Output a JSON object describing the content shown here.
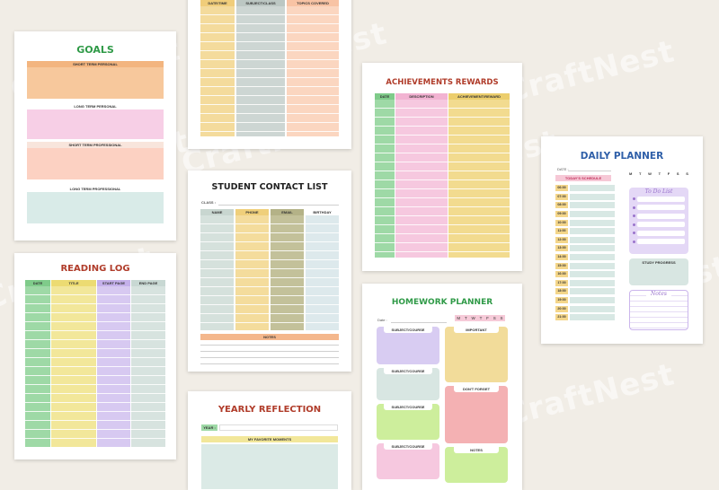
{
  "watermark": "CraftNest",
  "goals": {
    "title": "GOALS",
    "sections": [
      "SHORT TERM PERSONAL",
      "LONG TERM PERSONAL",
      "SHORT TERM PROFESSIONAL",
      "LONG TERM PROFESSIONAL"
    ]
  },
  "reading_log": {
    "title": "READING LOG",
    "headers": [
      "DATE",
      "TITLE",
      "START PAGE",
      "END PAGE"
    ]
  },
  "study_log": {
    "headers": [
      "DATE/TIME",
      "SUBJECT/CLASS",
      "TOPICS COVERED"
    ]
  },
  "contact_list": {
    "title": "STUDENT CONTACT LIST",
    "class_label": "CLASS :",
    "headers": [
      "NAME",
      "PHONE",
      "EMAIL",
      "BIRTHDAY"
    ],
    "notes_label": "NOTES"
  },
  "yearly": {
    "title": "YEARLY REFLECTION",
    "year_label": "YEAR :",
    "moments_label": "MY FAVORITE MOMENTS"
  },
  "achievements": {
    "title": "ACHIEVEMENTS REWARDS",
    "headers": [
      "DATE",
      "DESCRIPTION",
      "ACHIEVEMENT/REWARD"
    ]
  },
  "homework": {
    "title": "HOMEWORK PLANNER",
    "date_label": "Date :",
    "days": [
      "M",
      "T",
      "W",
      "T",
      "F",
      "S",
      "S"
    ],
    "subject_label": "SUBJECT/COURSE",
    "important_label": "IMPORTANT",
    "dont_forget_label": "DON'T FORGET",
    "notes_label": "NOTES"
  },
  "daily": {
    "title": "DAILY PLANNER",
    "date_label": "DATE :",
    "days": [
      "M",
      "T",
      "W",
      "T",
      "F",
      "S",
      "S"
    ],
    "schedule_label": "TODAY'S SCHEDULE",
    "todo_label": "To Do List",
    "progress_label": "STUDY PROGRESS",
    "notes_label": "Notes",
    "times": [
      "06:00",
      "07:00",
      "08:00",
      "09:00",
      "10:00",
      "11:00",
      "12:00",
      "13:00",
      "14:00",
      "15:00",
      "16:00",
      "17:00",
      "18:00",
      "19:00",
      "20:00",
      "21:00"
    ]
  }
}
